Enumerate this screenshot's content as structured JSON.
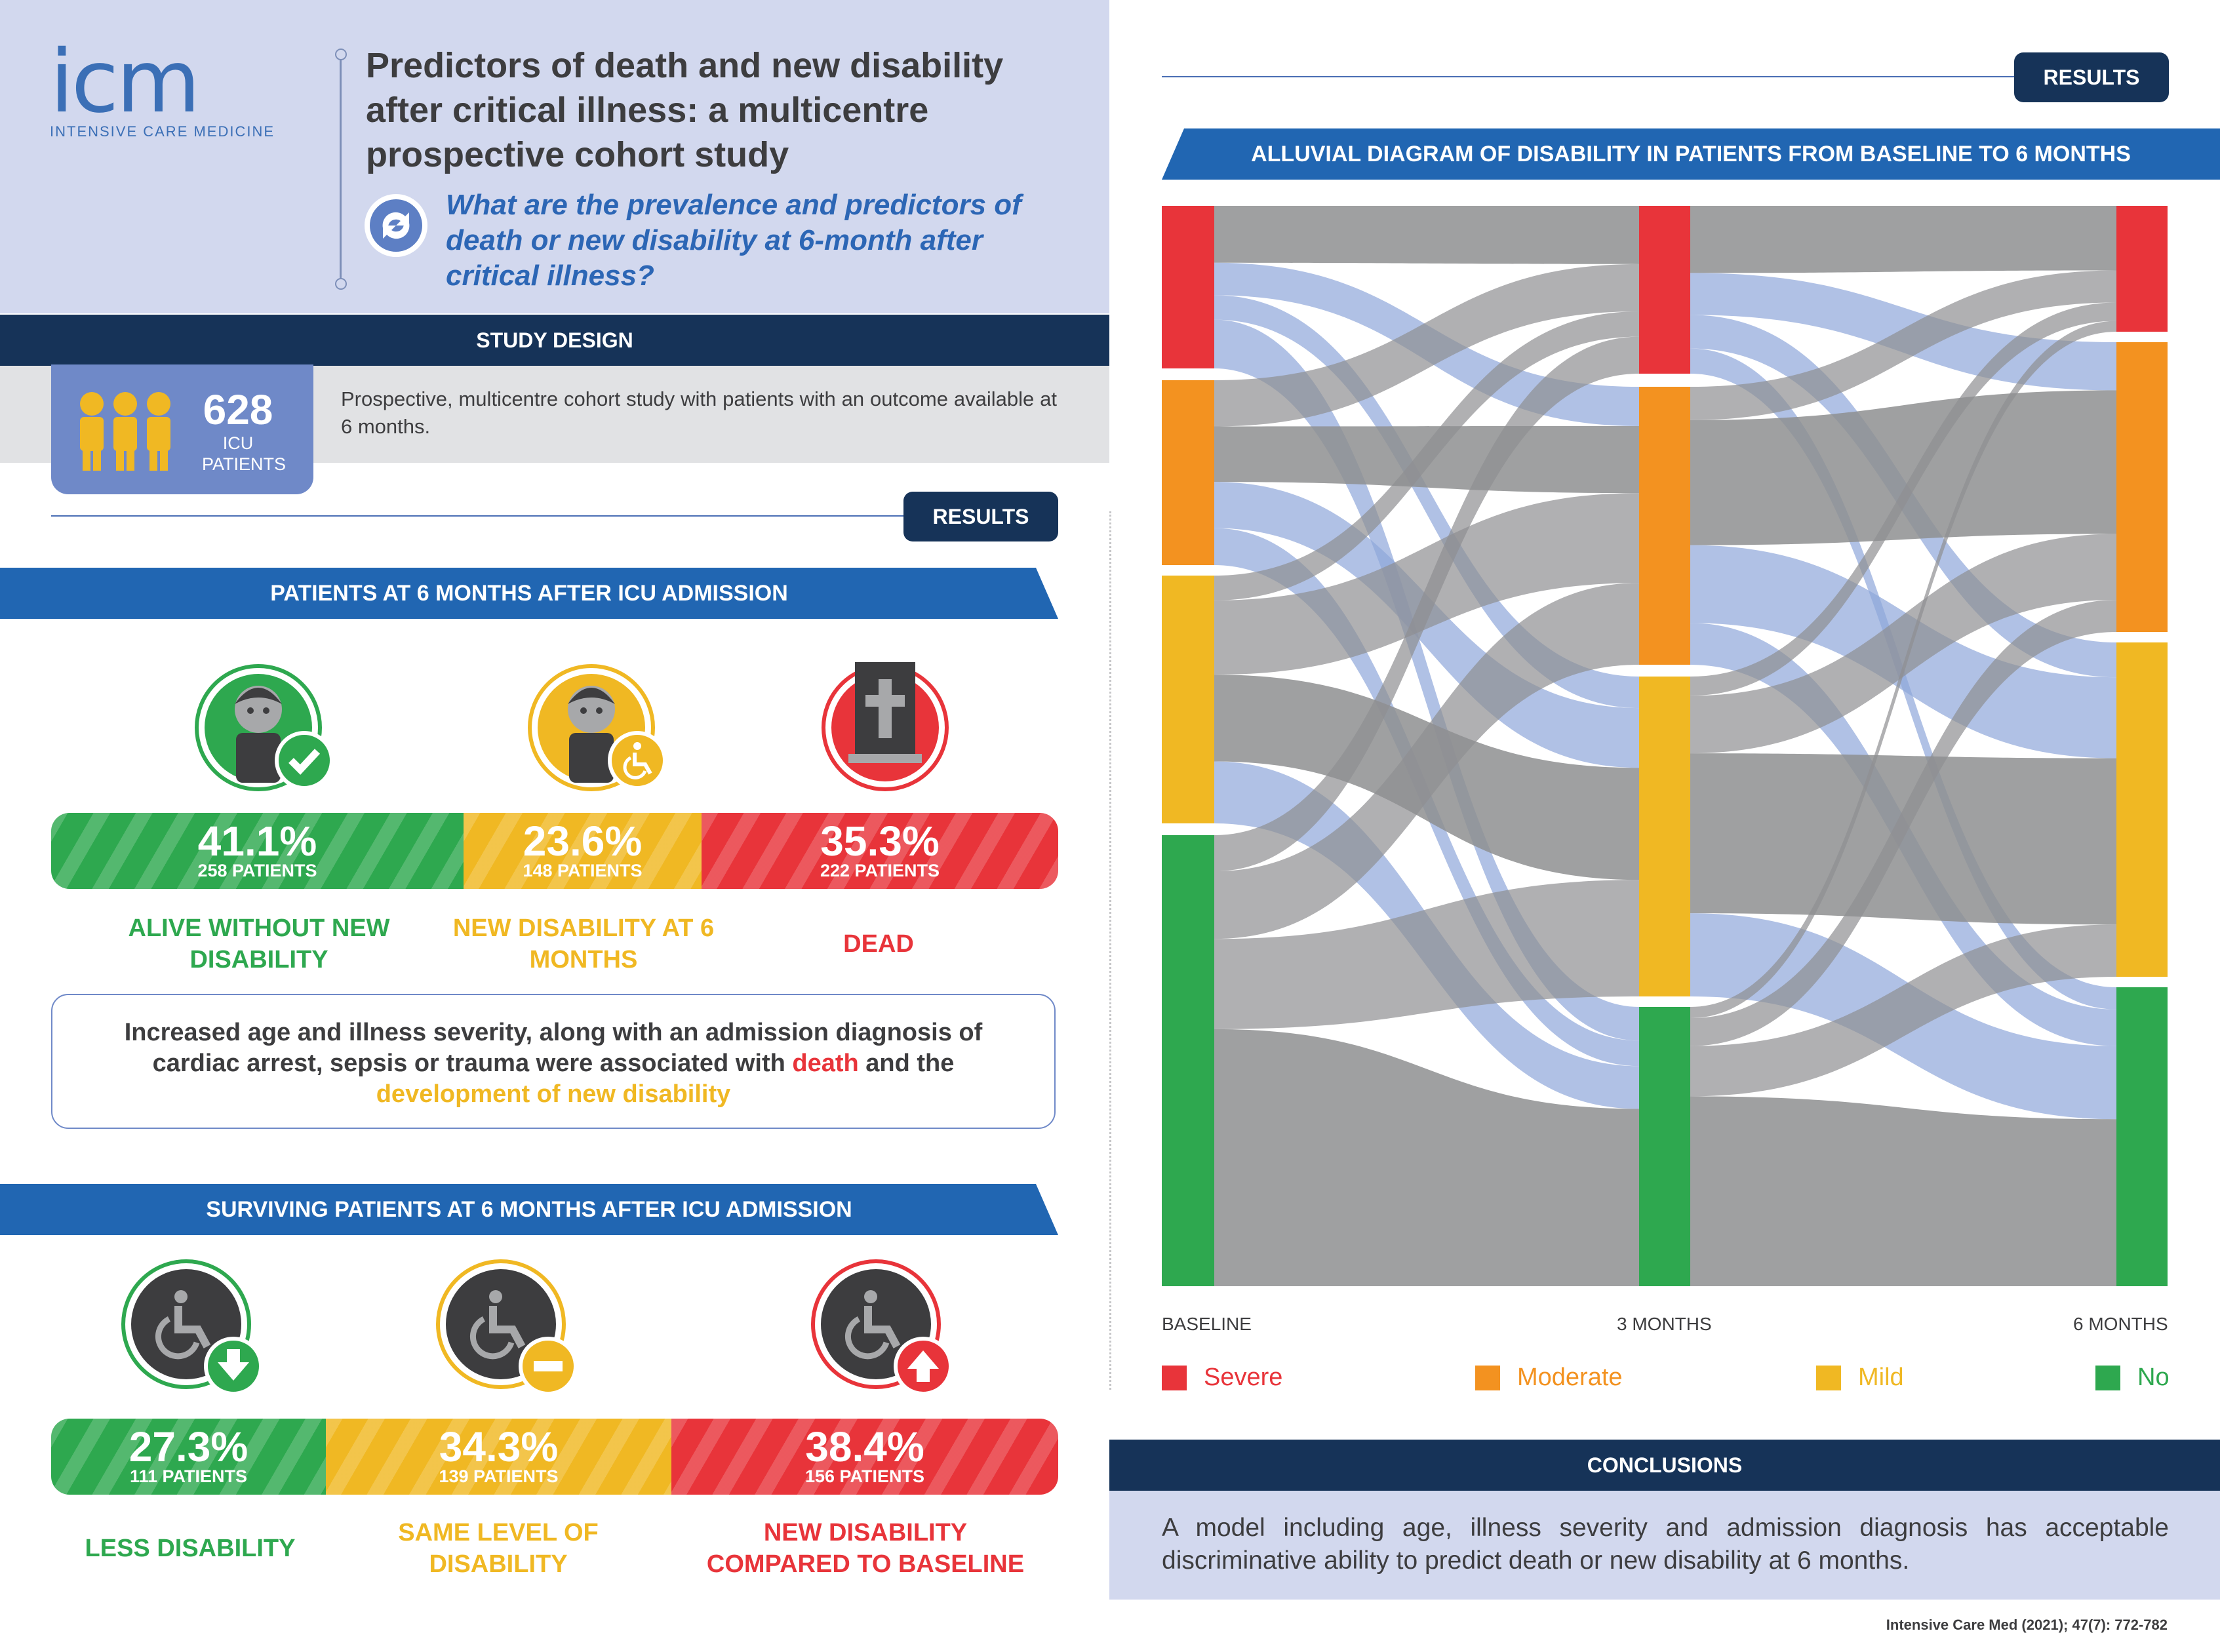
{
  "header": {
    "logo_text": "icm",
    "logo_subtitle": "INTENSIVE CARE MEDICINE",
    "title": "Predictors of death and new disability after critical illness: a multicentre prospective cohort study",
    "question": "What are the prevalence and predictors of death or new disability at 6-month after critical illness?"
  },
  "study_design": {
    "heading": "STUDY DESIGN",
    "count": "628",
    "count_label": "ICU PATIENTS",
    "description": "Prospective, multicentre cohort study with patients with an outcome available at 6 months."
  },
  "results_label": "RESULTS",
  "outcomes": {
    "heading": "PATIENTS AT 6 MONTHS AFTER ICU ADMISSION",
    "items": [
      {
        "pct": "41.1%",
        "patients": "258 PATIENTS",
        "label": "ALIVE WITHOUT NEW DISABILITY",
        "share": 41.1,
        "color": "#2ea84f"
      },
      {
        "pct": "23.6%",
        "patients": "148 PATIENTS",
        "label": "NEW DISABILITY AT 6 MONTHS",
        "share": 23.6,
        "color": "#f0b823"
      },
      {
        "pct": "35.3%",
        "patients": "222 PATIENTS",
        "label": "DEAD",
        "share": 35.3,
        "color": "#e8343a"
      }
    ],
    "finding_pre": "Increased age and illness severity, along with an admission diagnosis of cardiac arrest, sepsis or trauma were associated with ",
    "finding_death": "death",
    "finding_mid": " and the ",
    "finding_disability": "development of new disability"
  },
  "surviving": {
    "heading": "SURVIVING PATIENTS AT 6 MONTHS AFTER ICU ADMISSION",
    "items": [
      {
        "pct": "27.3%",
        "patients": "111 PATIENTS",
        "label": "LESS DISABILITY",
        "share": 27.3,
        "color": "#2ea84f"
      },
      {
        "pct": "34.3%",
        "patients": "139 PATIENTS",
        "label": "SAME LEVEL OF DISABILITY",
        "share": 34.3,
        "color": "#f0b823"
      },
      {
        "pct": "38.4%",
        "patients": "156 PATIENTS",
        "label": "NEW DISABILITY COMPARED TO BASELINE",
        "share": 38.4,
        "color": "#e8343a"
      }
    ]
  },
  "alluvial": {
    "heading": "ALLUVIAL DIAGRAM OF DISABILITY IN PATIENTS FROM BASELINE TO 6 MONTHS",
    "axis_labels": [
      "BASELINE",
      "3 MONTHS",
      "6 MONTHS"
    ],
    "legend": [
      {
        "label": "Severe",
        "color": "#e8343a"
      },
      {
        "label": "Moderate",
        "color": "#f39220"
      },
      {
        "label": "Mild",
        "color": "#f0b823"
      },
      {
        "label": "No",
        "color": "#2ea84f"
      }
    ],
    "flow_colors": {
      "gray": "#8e8f91",
      "blue": "#8fa7da"
    }
  },
  "conclusions": {
    "heading": "CONCLUSIONS",
    "text": "A model including age, illness severity and admission diagnosis has acceptable discriminative ability to predict death or new disability at 6 months."
  },
  "citation": "Intensive Care Med (2021); 47(7): 772-782"
}
